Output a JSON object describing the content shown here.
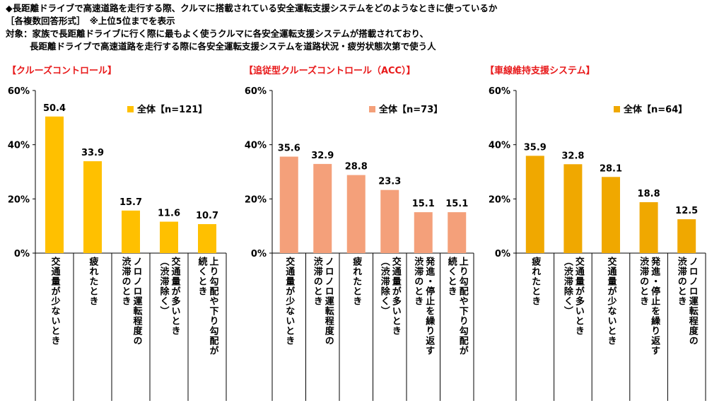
{
  "header": {
    "line1": "◆長距離ドライブで高速道路を走行する際、クルマに搭載されている安全運転支援システムをどのようなときに使っているか",
    "line2": "［各複数回答形式］　※上位5位までを表示",
    "line3": "対象：家族で長距離ドライブに行く際に最もよく使うクルマに各安全運転支援システムが搭載されており、",
    "line4": "長距離ドライブで高速道路を走行する際に各安全運転支援システムを道路状況・疲労状態次第で使う人"
  },
  "chart_data": [
    {
      "type": "bar",
      "title": "【クルーズコントロール】",
      "color": "#ffc000",
      "ylim": [
        0,
        60
      ],
      "yticks": [
        "0%",
        "20%",
        "40%",
        "60%"
      ],
      "grid": false,
      "legend": "全体【n=121】",
      "legend_position": "top-right",
      "categories": [
        [
          "交通量が少ないとき"
        ],
        [
          "疲れたとき"
        ],
        [
          "ノロノロ運転程度の",
          "渋滞のとき"
        ],
        [
          "交通量が多いとき",
          "（渋滞除く）"
        ],
        [
          "上り勾配や下り勾配が",
          "続くとき"
        ]
      ],
      "values": [
        50.4,
        33.9,
        15.7,
        11.6,
        10.7
      ],
      "labels": [
        "50.4",
        "33.9",
        "15.7",
        "11.6",
        "10.7"
      ]
    },
    {
      "type": "bar",
      "title": "【追従型クルーズコントロール（ACC）】",
      "color": "#f4a07a",
      "ylim": [
        0,
        60
      ],
      "yticks": [
        "0%",
        "20%",
        "40%",
        "60%"
      ],
      "grid": false,
      "legend": "全体【n=73】",
      "legend_position": "top-right",
      "categories": [
        [
          "交通量が少ないとき"
        ],
        [
          "ノロノロ運転程度の",
          "渋滞のとき"
        ],
        [
          "疲れたとき"
        ],
        [
          "交通量が多いとき",
          "（渋滞除く）"
        ],
        [
          "発進・停止を繰り返す",
          "渋滞のとき"
        ],
        [
          "上り勾配や下り勾配が",
          "続くとき"
        ]
      ],
      "values": [
        35.6,
        32.9,
        28.8,
        23.3,
        15.1,
        15.1
      ],
      "labels": [
        "35.6",
        "32.9",
        "28.8",
        "23.3",
        "15.1",
        "15.1"
      ]
    },
    {
      "type": "bar",
      "title": "【車線維持支援システム】",
      "color": "#f0a800",
      "ylim": [
        0,
        60
      ],
      "yticks": [
        "0%",
        "20%",
        "40%",
        "60%"
      ],
      "grid": false,
      "legend": "全体【n=64】",
      "legend_position": "top-right",
      "categories": [
        [
          "疲れたとき"
        ],
        [
          "交通量が多いとき",
          "（渋滞除く）"
        ],
        [
          "交通量が少ないとき"
        ],
        [
          "発進・停止を繰り返す",
          "渋滞のとき"
        ],
        [
          "ノロノロ運転程度の",
          "渋滞のとき"
        ]
      ],
      "values": [
        35.9,
        32.8,
        28.1,
        18.8,
        12.5
      ],
      "labels": [
        "35.9",
        "32.8",
        "28.1",
        "18.8",
        "12.5"
      ]
    }
  ]
}
